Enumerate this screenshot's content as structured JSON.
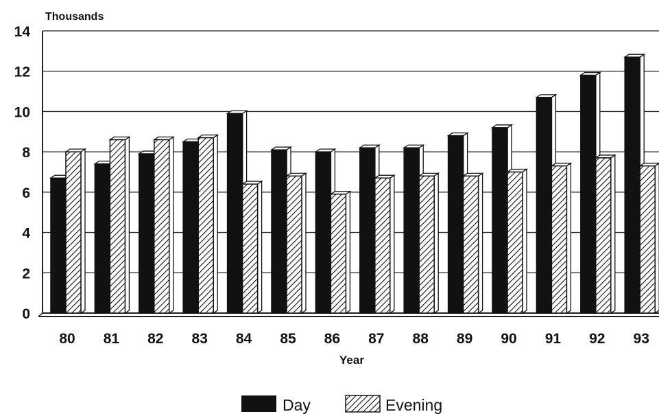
{
  "chart_data": {
    "type": "bar",
    "ylabel": "Thousands",
    "xlabel": "Year",
    "categories": [
      "80",
      "81",
      "82",
      "83",
      "84",
      "85",
      "86",
      "87",
      "88",
      "89",
      "90",
      "91",
      "92",
      "93"
    ],
    "series": [
      {
        "name": "Day",
        "values": [
          6.7,
          7.4,
          7.9,
          8.5,
          9.9,
          8.1,
          8.0,
          8.2,
          8.2,
          8.8,
          9.2,
          10.7,
          11.8,
          12.7
        ],
        "color": "#111111"
      },
      {
        "name": "Evening",
        "values": [
          8.0,
          8.6,
          8.6,
          8.7,
          6.4,
          6.8,
          5.9,
          6.7,
          6.8,
          6.8,
          7.0,
          7.3,
          7.7,
          7.3
        ],
        "color": "#ffffff",
        "pattern": "diagonal-hatch"
      }
    ],
    "ylim": [
      0,
      14
    ],
    "yticks": [
      "0",
      "2",
      "4",
      "6",
      "8",
      "10",
      "12",
      "14"
    ],
    "grid": true,
    "legend": "bottom-center"
  }
}
